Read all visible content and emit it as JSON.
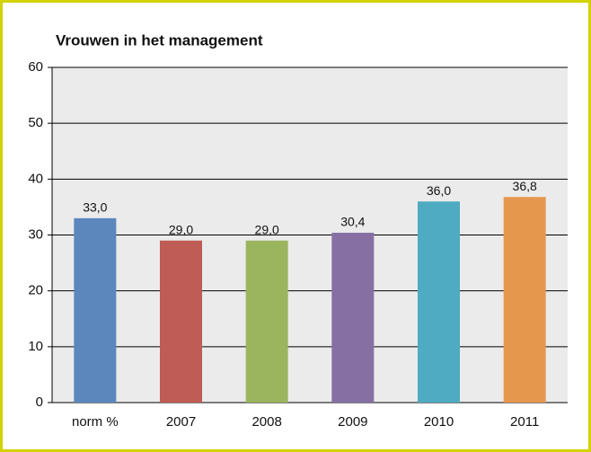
{
  "chart_data": {
    "type": "bar",
    "title": "Vrouwen in het management",
    "categories": [
      "norm %",
      "2007",
      "2008",
      "2009",
      "2010",
      "2011"
    ],
    "values": [
      33.0,
      29.0,
      29.0,
      30.4,
      36.0,
      36.8
    ],
    "value_labels": [
      "33,0",
      "29,0",
      "29,0",
      "30,4",
      "36,0",
      "36,8"
    ],
    "colors": [
      "#5b87bd",
      "#be5c55",
      "#9bb55f",
      "#8670a3",
      "#4eabc1",
      "#e6974e"
    ],
    "ylim": [
      0,
      60
    ],
    "yticks": [
      0,
      10,
      20,
      30,
      40,
      50,
      60
    ],
    "grid": true
  }
}
